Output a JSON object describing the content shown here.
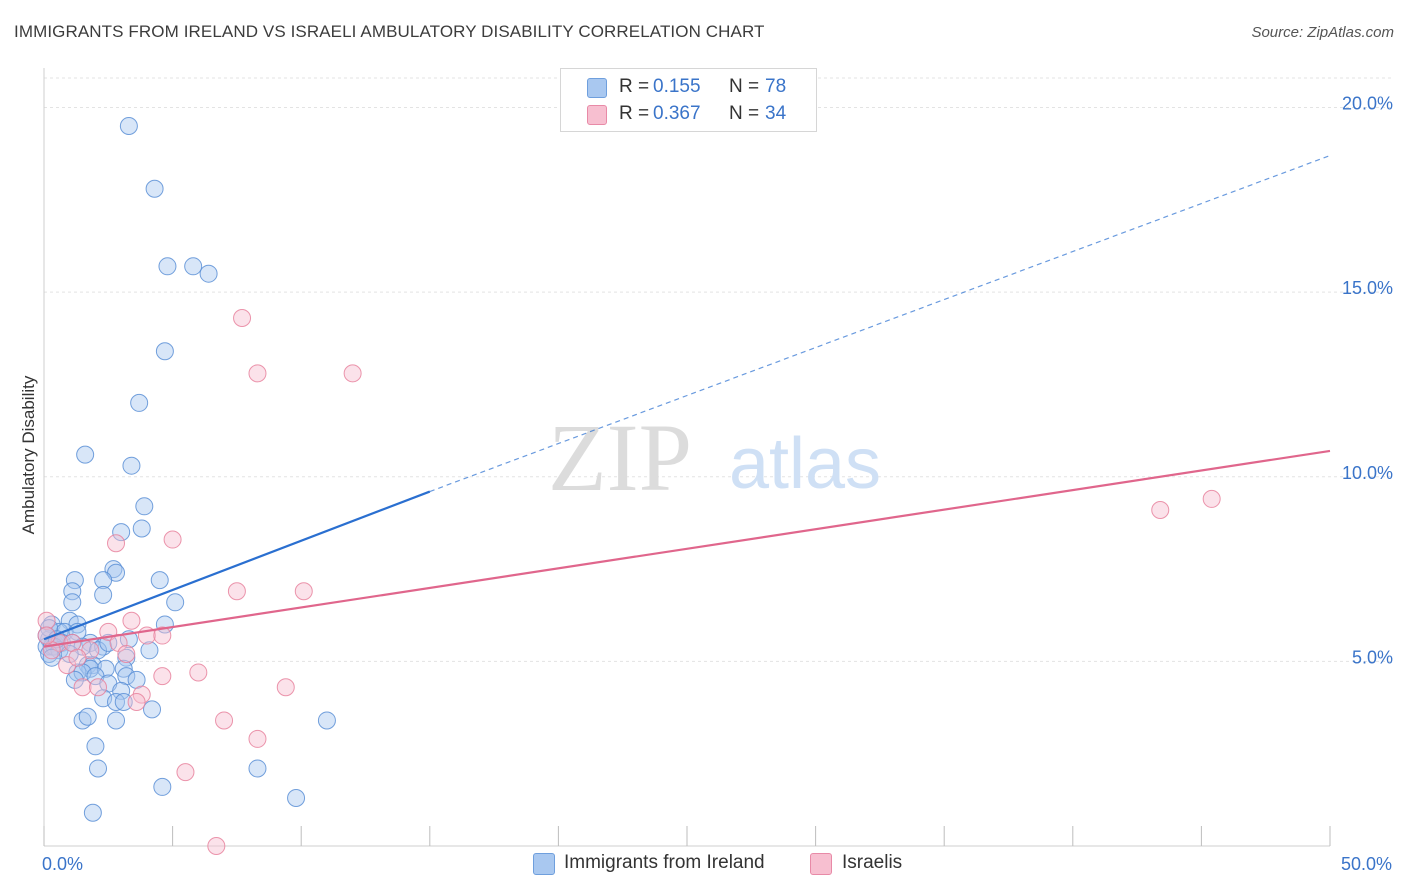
{
  "header": {
    "title": "IMMIGRANTS FROM IRELAND VS ISRAELI AMBULATORY DISABILITY CORRELATION CHART",
    "source": "Source: ZipAtlas.com"
  },
  "watermark": {
    "zip": "ZIP",
    "atlas": "atlas"
  },
  "legend": {
    "rows": [
      {
        "r_label": "R =",
        "r_value": "0.155",
        "n_label": "N =",
        "n_value": "78",
        "color": "#a9c8f0"
      },
      {
        "r_label": "R =",
        "r_value": "0.367",
        "n_label": "N =",
        "n_value": "34",
        "color": "#f7bfd0"
      }
    ]
  },
  "bottom_legend": {
    "items": [
      {
        "label": "Immigrants from Ireland",
        "color": "#a9c8f0"
      },
      {
        "label": "Israelis",
        "color": "#f7bfd0"
      }
    ]
  },
  "chart_data": {
    "type": "scatter",
    "title": "IMMIGRANTS FROM IRELAND VS ISRAELI AMBULATORY DISABILITY CORRELATION CHART",
    "xlabel": "",
    "ylabel": "Ambulatory Disability",
    "xlim": [
      0,
      50
    ],
    "ylim": [
      0,
      20.8
    ],
    "x_tick_labels": [
      {
        "value": 0,
        "label": "0.0%"
      },
      {
        "value": 50,
        "label": "50.0%"
      }
    ],
    "y_tick_labels": [
      {
        "value": 5,
        "label": "5.0%"
      },
      {
        "value": 10,
        "label": "10.0%"
      },
      {
        "value": 15,
        "label": "15.0%"
      },
      {
        "value": 20,
        "label": "20.0%"
      }
    ],
    "x_minor_ticks": [
      0,
      5,
      10,
      15,
      20,
      25,
      30,
      35,
      40,
      45,
      50
    ],
    "grid": true,
    "legend_position": "top-center",
    "series": [
      {
        "name": "Immigrants from Ireland",
        "color": "#5b8fd6",
        "fill": "#a9c8f0",
        "trend": {
          "x": [
            0,
            15
          ],
          "y": [
            5.6,
            9.6
          ],
          "dashed_to": [
            50,
            18.7
          ],
          "color": "#2a6fd0"
        },
        "points": [
          [
            3.3,
            19.5
          ],
          [
            4.3,
            17.8
          ],
          [
            4.8,
            15.7
          ],
          [
            5.8,
            15.7
          ],
          [
            6.4,
            15.5
          ],
          [
            4.7,
            13.4
          ],
          [
            3.7,
            12.0
          ],
          [
            1.6,
            10.6
          ],
          [
            3.4,
            10.3
          ],
          [
            3.9,
            9.2
          ],
          [
            3.8,
            8.6
          ],
          [
            3.0,
            8.5
          ],
          [
            2.7,
            7.5
          ],
          [
            2.8,
            7.4
          ],
          [
            1.2,
            7.2
          ],
          [
            2.3,
            7.2
          ],
          [
            4.5,
            7.2
          ],
          [
            1.1,
            6.9
          ],
          [
            2.3,
            6.8
          ],
          [
            1.1,
            6.6
          ],
          [
            5.1,
            6.6
          ],
          [
            1.0,
            6.1
          ],
          [
            0.3,
            6.0
          ],
          [
            1.3,
            6.0
          ],
          [
            4.7,
            6.0
          ],
          [
            0.6,
            5.8
          ],
          [
            0.8,
            5.8
          ],
          [
            1.3,
            5.8
          ],
          [
            0.2,
            5.6
          ],
          [
            0.4,
            5.5
          ],
          [
            0.5,
            5.5
          ],
          [
            0.7,
            5.5
          ],
          [
            1.1,
            5.5
          ],
          [
            1.8,
            5.5
          ],
          [
            3.3,
            5.6
          ],
          [
            0.1,
            5.4
          ],
          [
            0.3,
            5.4
          ],
          [
            0.4,
            5.4
          ],
          [
            1.5,
            5.4
          ],
          [
            2.3,
            5.4
          ],
          [
            0.6,
            5.3
          ],
          [
            2.1,
            5.3
          ],
          [
            4.1,
            5.3
          ],
          [
            0.2,
            5.2
          ],
          [
            3.2,
            5.1
          ],
          [
            0.3,
            5.1
          ],
          [
            1.7,
            4.9
          ],
          [
            1.9,
            4.9
          ],
          [
            1.8,
            4.8
          ],
          [
            2.4,
            4.8
          ],
          [
            3.1,
            4.8
          ],
          [
            1.3,
            4.7
          ],
          [
            1.5,
            4.7
          ],
          [
            2.0,
            4.6
          ],
          [
            3.2,
            4.6
          ],
          [
            3.6,
            4.5
          ],
          [
            1.2,
            4.5
          ],
          [
            2.5,
            4.4
          ],
          [
            3.0,
            4.2
          ],
          [
            2.3,
            4.0
          ],
          [
            2.8,
            3.9
          ],
          [
            3.1,
            3.9
          ],
          [
            4.2,
            3.7
          ],
          [
            1.5,
            3.4
          ],
          [
            1.7,
            3.5
          ],
          [
            2.8,
            3.4
          ],
          [
            11.0,
            3.4
          ],
          [
            2.0,
            2.7
          ],
          [
            2.1,
            2.1
          ],
          [
            4.6,
            1.6
          ],
          [
            8.3,
            2.1
          ],
          [
            9.8,
            1.3
          ],
          [
            1.9,
            0.9
          ],
          [
            0.2,
            5.9
          ],
          [
            0.1,
            5.7
          ],
          [
            0.5,
            5.6
          ],
          [
            2.5,
            5.5
          ],
          [
            1.0,
            5.2
          ]
        ]
      },
      {
        "name": "Israelis",
        "color": "#e8829e",
        "fill": "#f7bfd0",
        "trend": {
          "x": [
            0,
            50
          ],
          "y": [
            5.4,
            10.7
          ],
          "color": "#e0668c"
        },
        "points": [
          [
            7.7,
            14.3
          ],
          [
            8.3,
            12.8
          ],
          [
            12.0,
            12.8
          ],
          [
            2.8,
            8.2
          ],
          [
            5.0,
            8.3
          ],
          [
            7.5,
            6.9
          ],
          [
            10.1,
            6.9
          ],
          [
            3.4,
            6.1
          ],
          [
            0.1,
            6.1
          ],
          [
            2.5,
            5.8
          ],
          [
            4.0,
            5.7
          ],
          [
            4.6,
            5.7
          ],
          [
            0.6,
            5.5
          ],
          [
            1.1,
            5.5
          ],
          [
            2.9,
            5.5
          ],
          [
            0.3,
            5.3
          ],
          [
            1.8,
            5.3
          ],
          [
            3.2,
            5.2
          ],
          [
            0.9,
            4.9
          ],
          [
            4.6,
            4.6
          ],
          [
            6.0,
            4.7
          ],
          [
            1.5,
            4.3
          ],
          [
            2.1,
            4.3
          ],
          [
            9.4,
            4.3
          ],
          [
            3.8,
            4.1
          ],
          [
            3.6,
            3.9
          ],
          [
            7.0,
            3.4
          ],
          [
            8.3,
            2.9
          ],
          [
            5.5,
            2.0
          ],
          [
            6.7,
            0.0
          ],
          [
            43.4,
            9.1
          ],
          [
            45.4,
            9.4
          ],
          [
            0.1,
            5.7
          ],
          [
            1.3,
            5.1
          ]
        ]
      }
    ]
  }
}
